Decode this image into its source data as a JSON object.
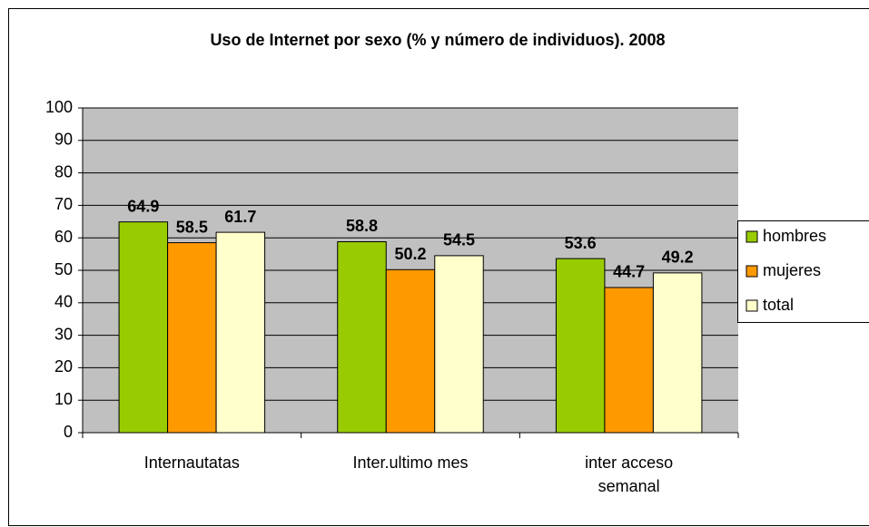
{
  "chart_data": {
    "type": "bar",
    "title": "Uso de Internet por sexo (% y número de individuos). 2008",
    "categories": [
      "Internautatas",
      "Inter.ultimo mes",
      "inter acceso semanal"
    ],
    "series": [
      {
        "name": "hombres",
        "color": "#99cc00",
        "values": [
          64.9,
          58.8,
          53.6
        ]
      },
      {
        "name": "mujeres",
        "color": "#ff9900",
        "values": [
          58.5,
          50.2,
          44.7
        ]
      },
      {
        "name": "total",
        "color": "#ffffcc",
        "values": [
          61.7,
          54.5,
          49.2
        ]
      }
    ],
    "ylim": [
      0,
      100
    ],
    "yticks": [
      0,
      10,
      20,
      30,
      40,
      50,
      60,
      70,
      80,
      90,
      100
    ],
    "grid": true,
    "legend": "right"
  }
}
